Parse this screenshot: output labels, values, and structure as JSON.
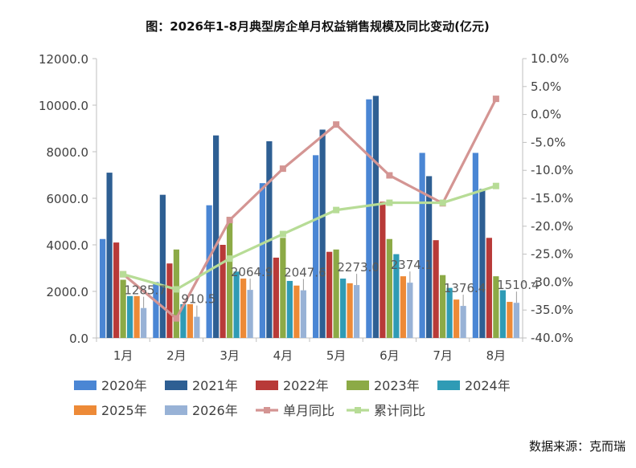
{
  "title": "图：2026年1-8月典型房企单月权益销售规模及同比变动(亿元)",
  "source": "数据来源：克而瑞",
  "colors": {
    "2020年": "#4a86d4",
    "2021年": "#2e5f93",
    "2022年": "#b83a38",
    "2023年": "#8caa46",
    "2024年": "#2f9bb5",
    "2025年": "#ed8a37",
    "2026年": "#98b2d6",
    "单月同比": "#d49593",
    "累计同比": "#b7dc96"
  },
  "chart_data": {
    "type": "bar",
    "categories": [
      "1月",
      "2月",
      "3月",
      "4月",
      "5月",
      "6月",
      "7月",
      "8月"
    ],
    "y_left_lim": [
      0,
      12000
    ],
    "y_left_ticks": [
      "0.0",
      "2000.0",
      "4000.0",
      "6000.0",
      "8000.0",
      "10000.0",
      "12000.0"
    ],
    "y_right_lim": [
      -40,
      10
    ],
    "y_right_ticks": [
      "-40.0%",
      "-35.0%",
      "-30.0%",
      "-25.0%",
      "-20.0%",
      "-15.0%",
      "-10.0%",
      "-5.0%",
      "0.0%",
      "5.0%",
      "10.0%"
    ],
    "series": [
      {
        "name": "2020年",
        "values": [
          4250,
          2400,
          5700,
          6650,
          7850,
          10250,
          7950,
          7950
        ]
      },
      {
        "name": "2021年",
        "values": [
          7100,
          6150,
          8700,
          8450,
          8950,
          10400,
          6950,
          6400
        ]
      },
      {
        "name": "2022年",
        "values": [
          4100,
          3200,
          4000,
          3450,
          3700,
          5850,
          4200,
          4300
        ]
      },
      {
        "name": "2023年",
        "values": [
          2500,
          3800,
          5200,
          4300,
          3800,
          4250,
          2700,
          2650
        ]
      },
      {
        "name": "2024年",
        "values": [
          1800,
          1450,
          2850,
          2450,
          2550,
          3600,
          2150,
          2050
        ]
      },
      {
        "name": "2025年",
        "values": [
          1800,
          1450,
          2550,
          2250,
          2350,
          2650,
          1650,
          1550
        ]
      },
      {
        "name": "2026年",
        "values": [
          1285.7,
          910.5,
          2064.9,
          2047.6,
          2273.0,
          2374.1,
          1376.4,
          1510.4
        ]
      }
    ],
    "bar_labels": [
      "1285.7",
      "910.5",
      "2064.9",
      "2047.6",
      "2273.0",
      "2374.1",
      "1376.4",
      "1510.4"
    ],
    "lines": [
      {
        "name": "单月同比",
        "axis": "right",
        "values": [
          -28.6,
          -36.5,
          -18.9,
          -9.7,
          -1.8,
          -10.9,
          -15.9,
          2.8
        ]
      },
      {
        "name": "累计同比",
        "axis": "right",
        "values": [
          -28.6,
          -31.3,
          -25.8,
          -21.4,
          -17.1,
          -15.8,
          -15.8,
          -12.8
        ]
      }
    ],
    "legend": [
      "2020年",
      "2021年",
      "2022年",
      "2023年",
      "2024年",
      "2025年",
      "2026年",
      "单月同比",
      "累计同比"
    ],
    "legend_position": "bottom"
  }
}
